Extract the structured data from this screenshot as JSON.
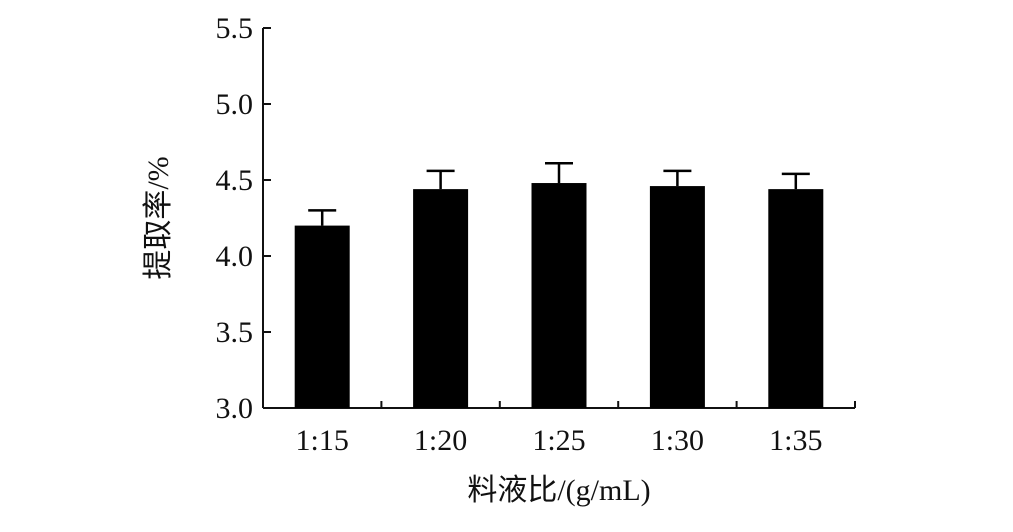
{
  "chart_data": {
    "type": "bar",
    "categories": [
      "1:15",
      "1:20",
      "1:25",
      "1:30",
      "1:35"
    ],
    "values": [
      4.2,
      4.44,
      4.48,
      4.46,
      4.44
    ],
    "error": [
      0.1,
      0.12,
      0.13,
      0.1,
      0.1
    ],
    "xlabel": "料液比/(g/mL)",
    "ylabel": "提取率/%",
    "ylim": [
      3.0,
      5.5
    ],
    "yticks": [
      "3.0",
      "3.5",
      "4.0",
      "4.5",
      "5.0",
      "5.5"
    ],
    "grid": false,
    "bar_color": "#000000",
    "axis_color": "#111111"
  }
}
